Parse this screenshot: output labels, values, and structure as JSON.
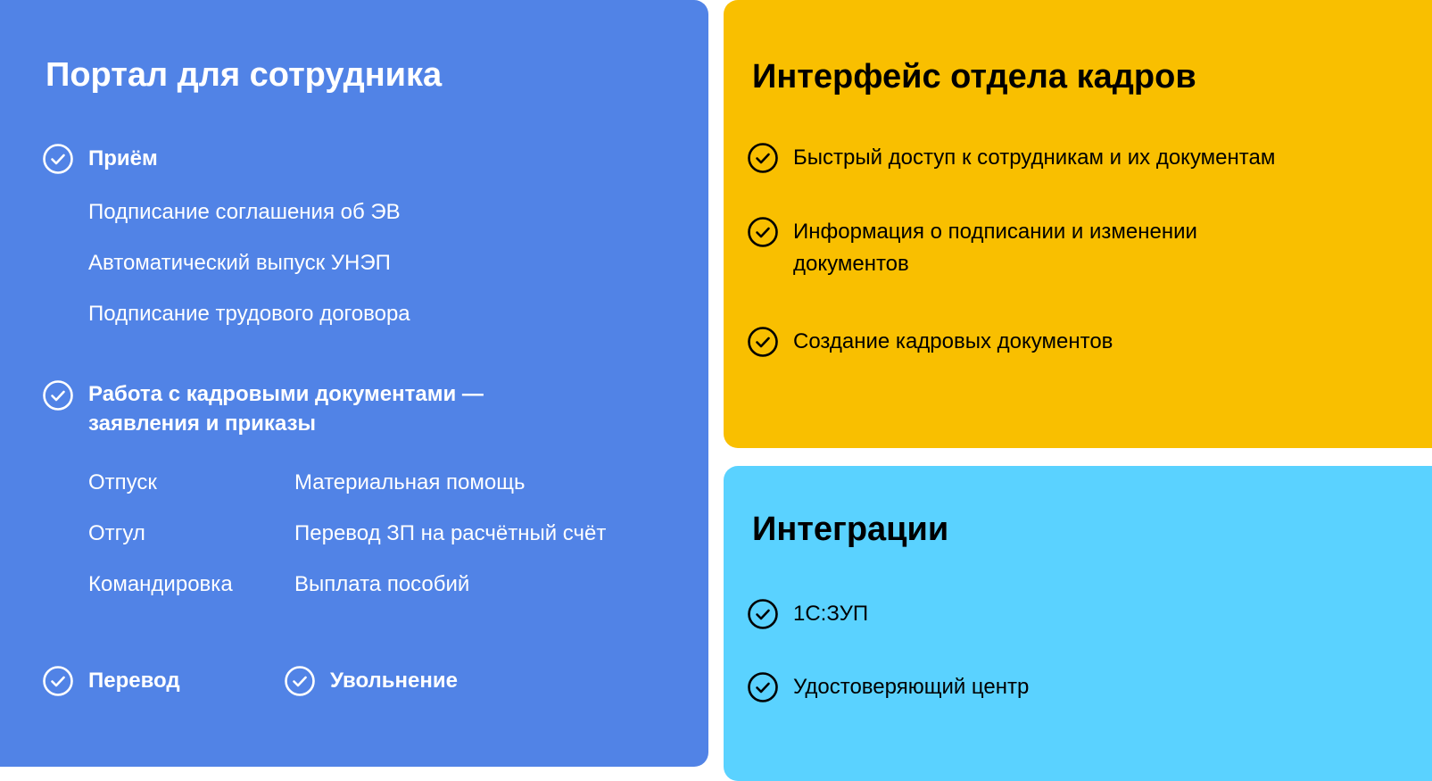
{
  "colors": {
    "employee_portal": "#5183E6",
    "hr_interface": "#F9BF00",
    "integrations": "#5AD2FF"
  },
  "employee_portal": {
    "title": "Портал для сотрудника",
    "hiring": {
      "label": "Приём",
      "items": [
        "Подписание соглашения об ЭВ",
        "Автоматический выпуск УНЭП",
        "Подписание трудового договора"
      ]
    },
    "documents": {
      "label_line1": "Работа с кадровыми документами —",
      "label_line2": "заявления и приказы",
      "col1": [
        "Отпуск",
        "Отгул",
        "Командировка"
      ],
      "col2": [
        "Материальная помощь",
        "Перевод ЗП на расчётный счёт",
        "Выплата пособий"
      ]
    },
    "transfer": "Перевод",
    "dismissal": "Увольнение"
  },
  "hr_interface": {
    "title": "Интерфейс отдела кадров",
    "items": [
      "Быстрый доступ к сотрудникам и их документам",
      "Информация о подписании и изменении",
      "документов",
      "Создание кадровых документов"
    ]
  },
  "integrations": {
    "title": "Интеграции",
    "items": [
      "1С:ЗУП",
      "Удостоверяющий центр"
    ]
  },
  "icon": "check-circle-icon"
}
